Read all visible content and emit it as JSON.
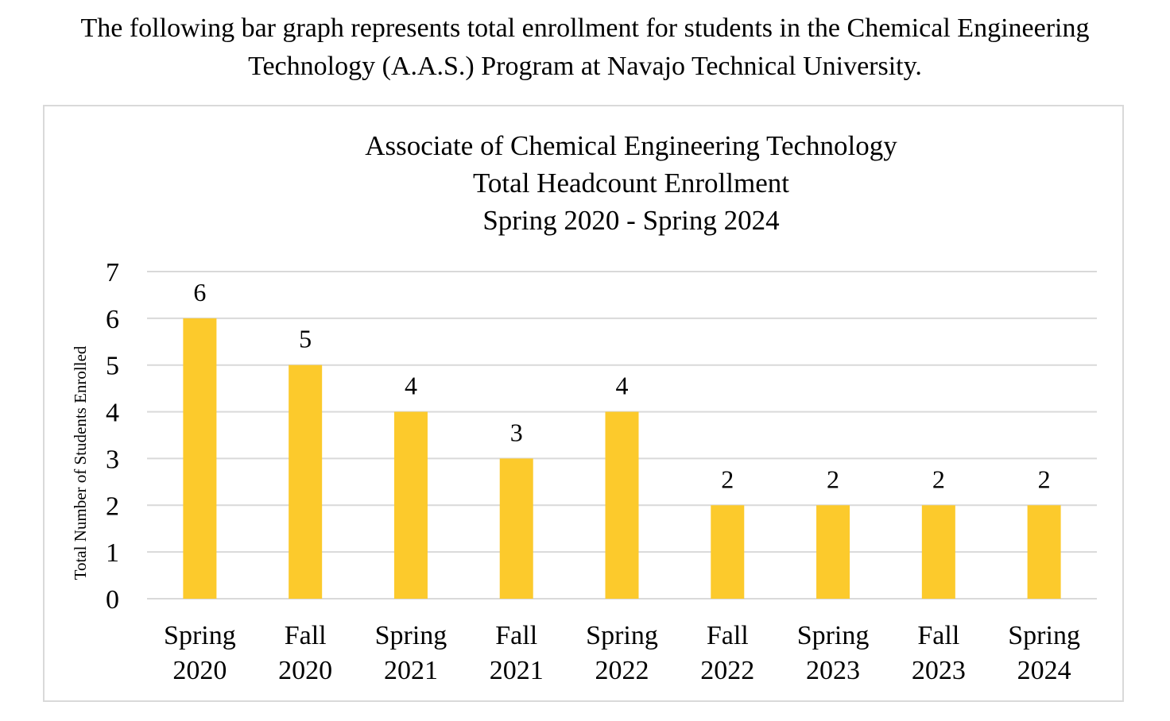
{
  "intro": {
    "line1": "The following bar graph represents total enrollment for students in the Chemical Engineering",
    "line2": "Technology (A.A.S.) Program at Navajo Technical University."
  },
  "chart_data": {
    "type": "bar",
    "title": [
      "Associate of Chemical Engineering Technology",
      "Total Headcount Enrollment",
      "Spring 2020 - Spring 2024"
    ],
    "ylabel": "Total Number of Students Enrolled",
    "xlabel": "",
    "categories": [
      [
        "Spring",
        "2020"
      ],
      [
        "Fall",
        "2020"
      ],
      [
        "Spring",
        "2021"
      ],
      [
        "Fall",
        "2021"
      ],
      [
        "Spring",
        "2022"
      ],
      [
        "Fall",
        "2022"
      ],
      [
        "Spring",
        "2023"
      ],
      [
        "Fall",
        "2023"
      ],
      [
        "Spring",
        "2024"
      ]
    ],
    "values": [
      6,
      5,
      4,
      3,
      4,
      2,
      2,
      2,
      2
    ],
    "ylim": [
      0,
      7
    ],
    "yticks": [
      0,
      1,
      2,
      3,
      4,
      5,
      6,
      7
    ],
    "grid": true,
    "legend": "none",
    "data_labels": true,
    "bar_color": "#FCCA2C",
    "grid_color": "#d9d9d9"
  }
}
